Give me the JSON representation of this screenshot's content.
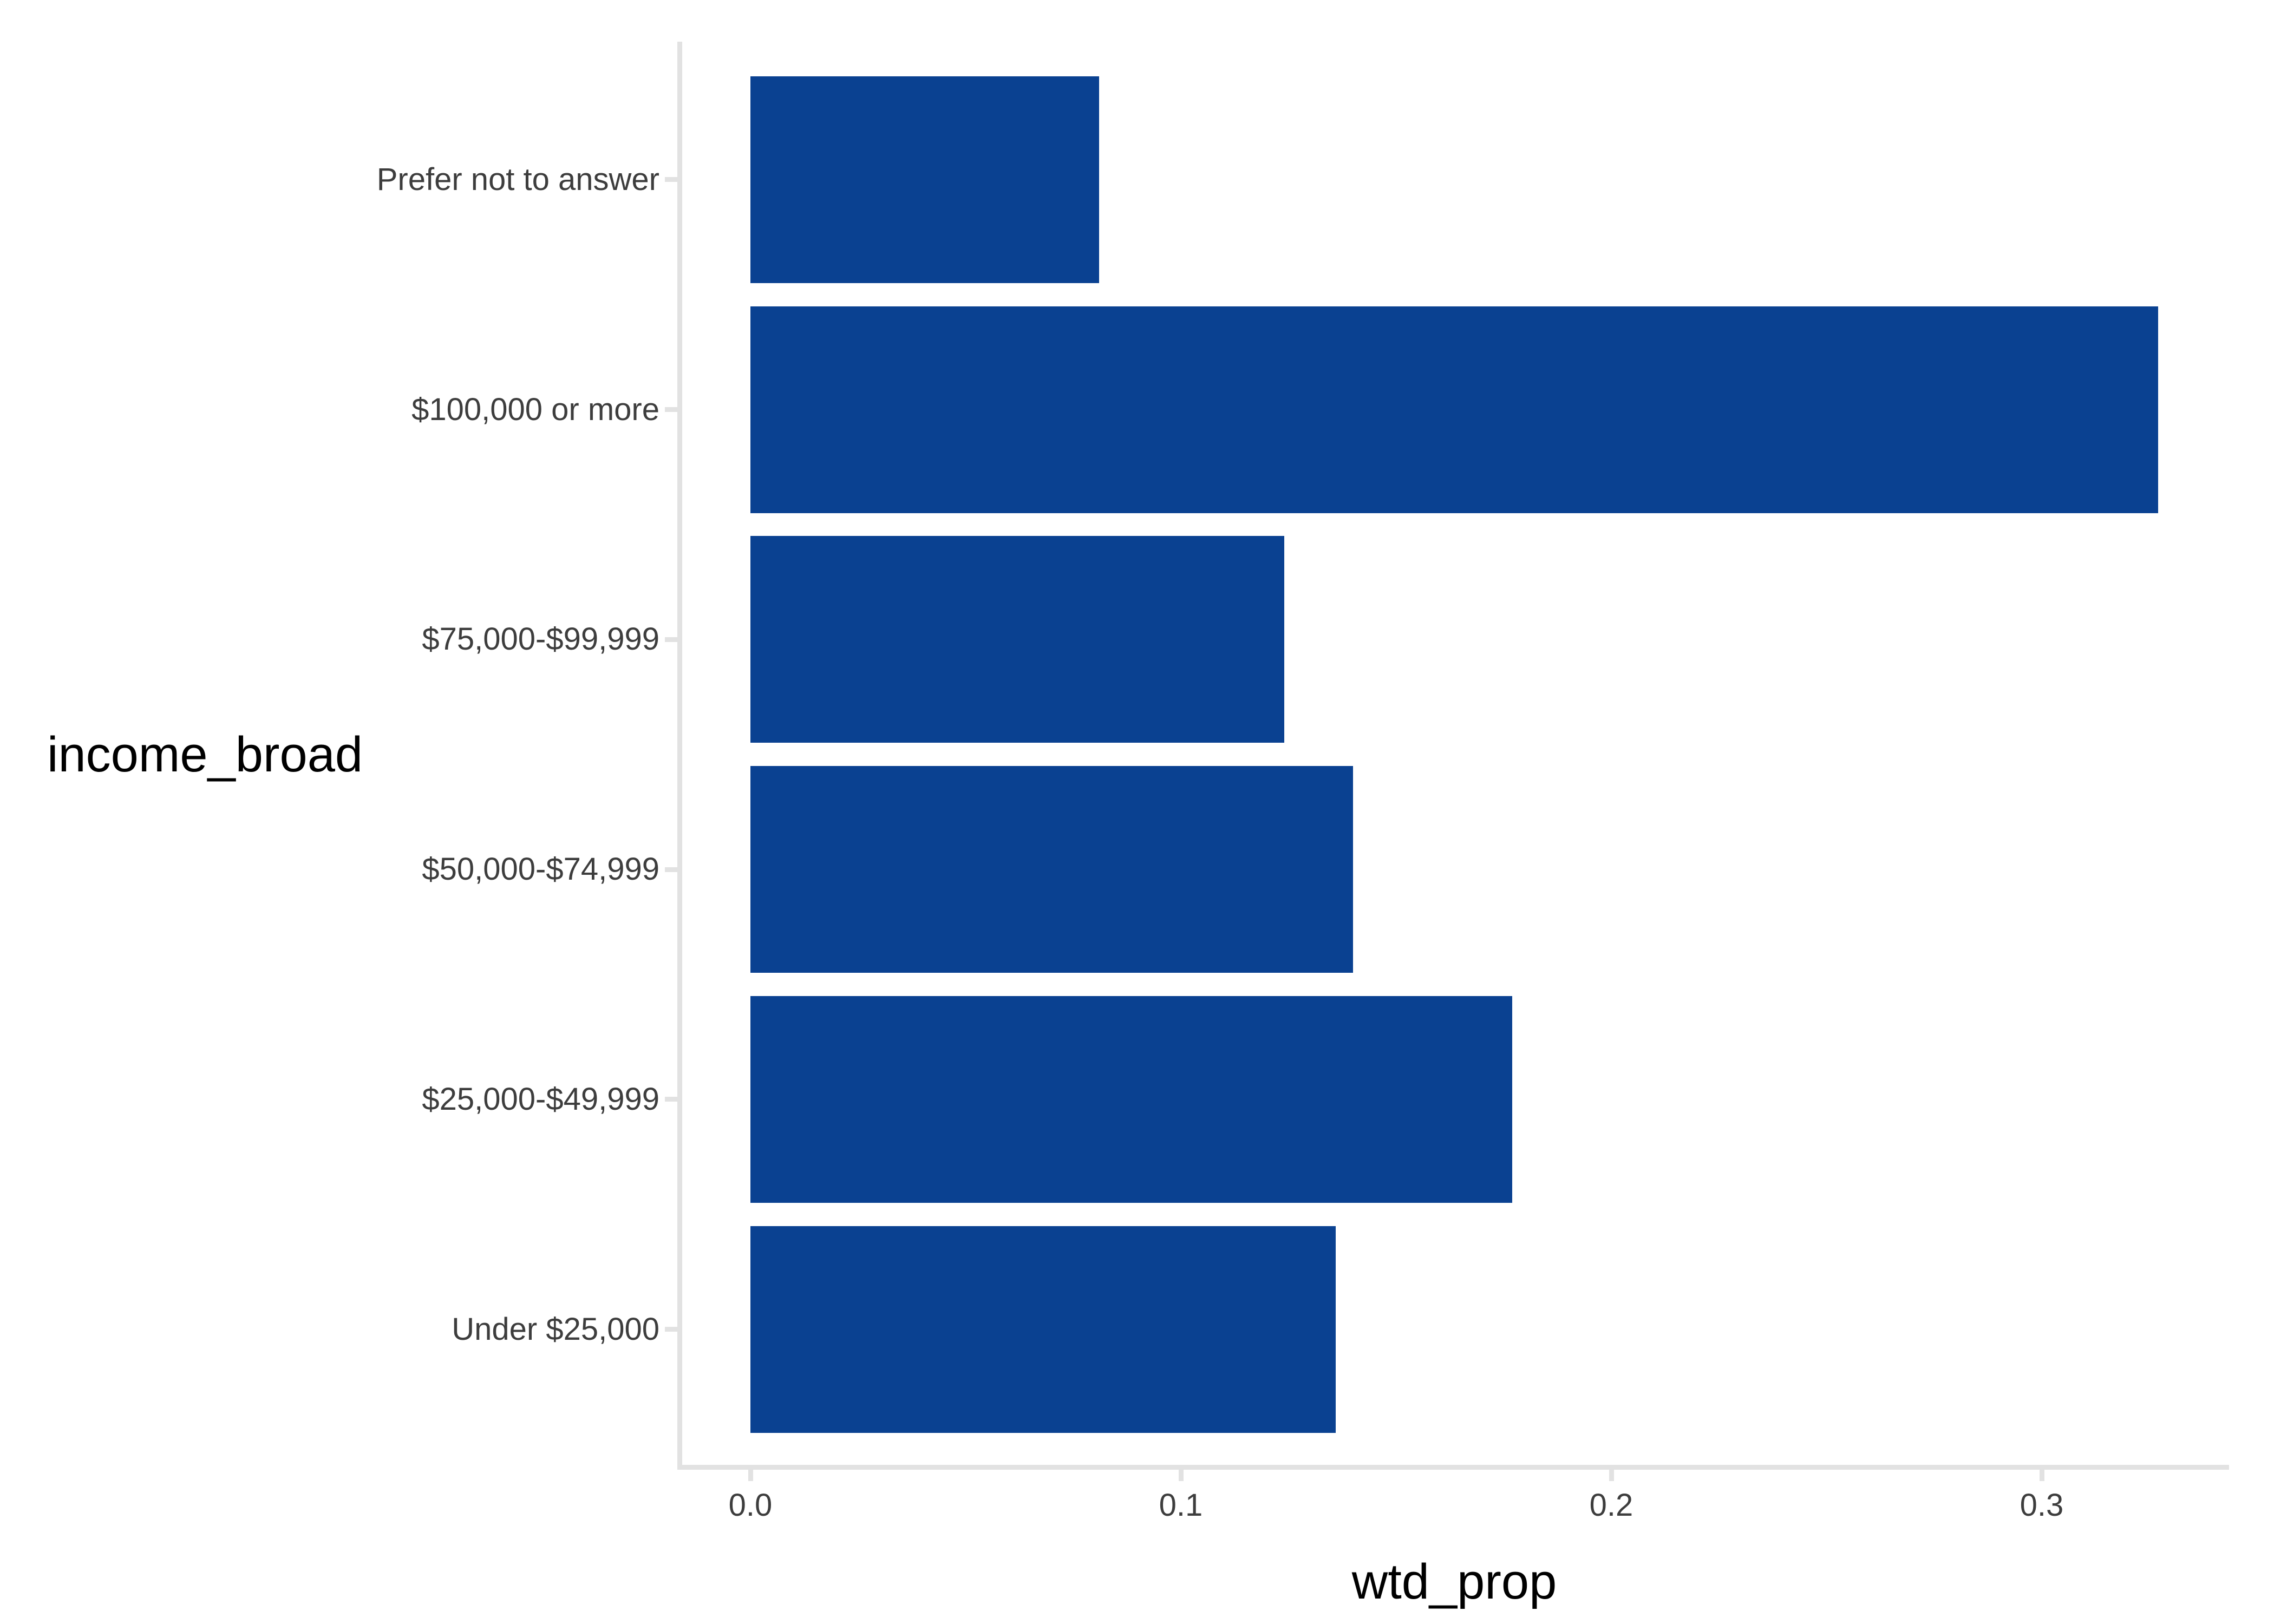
{
  "chart_data": {
    "type": "bar",
    "orientation": "horizontal",
    "title": "",
    "xlabel": "wtd_prop",
    "ylabel": "income_broad",
    "categories": [
      "Prefer not to answer",
      "$100,000 or more",
      "$75,000-$99,999",
      "$50,000-$74,999",
      "$25,000-$49,999",
      "Under $25,000"
    ],
    "values": [
      0.081,
      0.327,
      0.124,
      0.14,
      0.177,
      0.136
    ],
    "x_ticks": [
      "0.0",
      "0.1",
      "0.2",
      "0.3"
    ],
    "xlim": [
      0,
      0.344
    ],
    "bar_width_fraction": 0.9,
    "grid": false,
    "legend": "none",
    "style": {
      "bar_color": "#0a4191",
      "axis_line_color": "#e2e2e2",
      "tick_label_color": "#3d3d3d",
      "axis_title_color": "#000000",
      "background": "#ffffff"
    }
  }
}
